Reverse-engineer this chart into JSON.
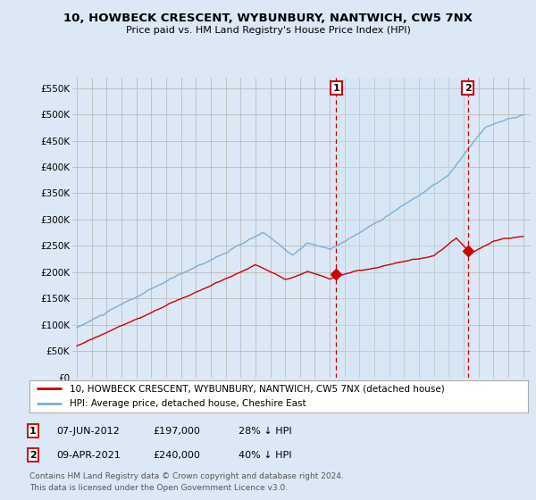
{
  "title": "10, HOWBECK CRESCENT, WYBUNBURY, NANTWICH, CW5 7NX",
  "subtitle": "Price paid vs. HM Land Registry's House Price Index (HPI)",
  "bg_color": "#dce8f5",
  "plot_bg_color": "#dce8f5",
  "grid_color": "#bbbbbb",
  "red_color": "#cc0000",
  "blue_color": "#7bafd4",
  "shade_color": "#d0e4f5",
  "ylim": [
    0,
    570000
  ],
  "yticks": [
    0,
    50000,
    100000,
    150000,
    200000,
    250000,
    300000,
    350000,
    400000,
    450000,
    500000,
    550000
  ],
  "ytick_labels": [
    "£0",
    "£50K",
    "£100K",
    "£150K",
    "£200K",
    "£250K",
    "£300K",
    "£350K",
    "£400K",
    "£450K",
    "£500K",
    "£550K"
  ],
  "marker1_date": 2012.44,
  "marker1_price": 197000,
  "marker2_date": 2021.27,
  "marker2_price": 240000,
  "marker1_text1": "07-JUN-2012",
  "marker1_text2": "£197,000",
  "marker1_text3": "28% ↓ HPI",
  "marker2_text1": "09-APR-2021",
  "marker2_text2": "£240,000",
  "marker2_text3": "40% ↓ HPI",
  "legend_line1": "10, HOWBECK CRESCENT, WYBUNBURY, NANTWICH, CW5 7NX (detached house)",
  "legend_line2": "HPI: Average price, detached house, Cheshire East",
  "footer1": "Contains HM Land Registry data © Crown copyright and database right 2024.",
  "footer2": "This data is licensed under the Open Government Licence v3.0."
}
